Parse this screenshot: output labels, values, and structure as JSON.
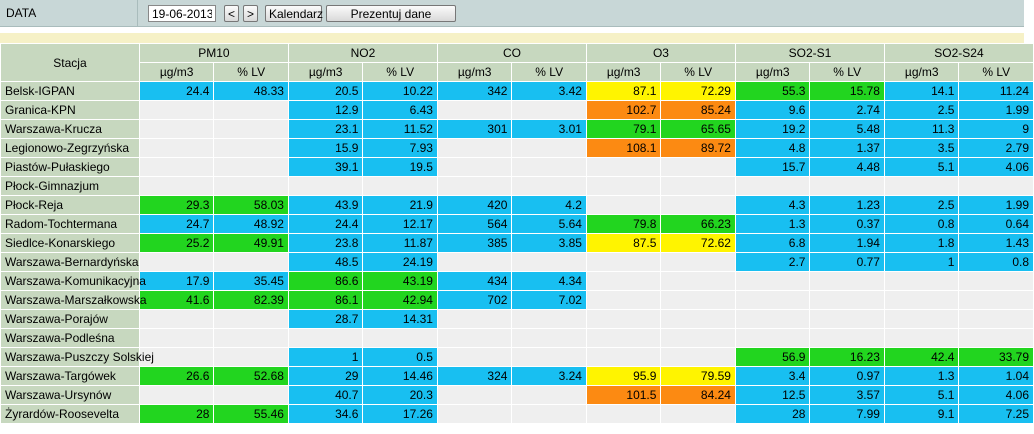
{
  "toolbar": {
    "label": "DATA",
    "date": "19-06-2013",
    "prev": "<",
    "next": ">",
    "calendar": "Kalendarz",
    "show": "Prezentuj dane"
  },
  "table": {
    "station_header": "Stacja",
    "groups": [
      {
        "name": "PM10",
        "units": [
          "µg/m3",
          "% LV"
        ]
      },
      {
        "name": "NO2",
        "units": [
          "µg/m3",
          "% LV"
        ]
      },
      {
        "name": "CO",
        "units": [
          "µg/m3",
          "% LV"
        ]
      },
      {
        "name": "O3",
        "units": [
          "µg/m3",
          "% LV"
        ]
      },
      {
        "name": "SO2-S1",
        "units": [
          "µg/m3",
          "% LV"
        ]
      },
      {
        "name": "SO2-S24",
        "units": [
          "µg/m3",
          "% LV"
        ]
      }
    ],
    "colors": {
      "e": "#efefef",
      "b": "#18bff1",
      "g": "#22d51f",
      "y": "#fff400",
      "o": "#fc8a12"
    },
    "rows": [
      {
        "station": "Belsk-IGPAN",
        "cells": [
          [
            "24.4",
            "b"
          ],
          [
            "48.33",
            "b"
          ],
          [
            "20.5",
            "b"
          ],
          [
            "10.22",
            "b"
          ],
          [
            "342",
            "b"
          ],
          [
            "3.42",
            "b"
          ],
          [
            "87.1",
            "y"
          ],
          [
            "72.29",
            "y"
          ],
          [
            "55.3",
            "g"
          ],
          [
            "15.78",
            "g"
          ],
          [
            "14.1",
            "b"
          ],
          [
            "11.24",
            "b"
          ]
        ]
      },
      {
        "station": "Granica-KPN",
        "cells": [
          [
            "",
            "e"
          ],
          [
            "",
            "e"
          ],
          [
            "12.9",
            "b"
          ],
          [
            "6.43",
            "b"
          ],
          [
            "",
            "e"
          ],
          [
            "",
            "e"
          ],
          [
            "102.7",
            "o"
          ],
          [
            "85.24",
            "o"
          ],
          [
            "9.6",
            "b"
          ],
          [
            "2.74",
            "b"
          ],
          [
            "2.5",
            "b"
          ],
          [
            "1.99",
            "b"
          ]
        ]
      },
      {
        "station": "Warszawa-Krucza",
        "cells": [
          [
            "",
            "e"
          ],
          [
            "",
            "e"
          ],
          [
            "23.1",
            "b"
          ],
          [
            "11.52",
            "b"
          ],
          [
            "301",
            "b"
          ],
          [
            "3.01",
            "b"
          ],
          [
            "79.1",
            "g"
          ],
          [
            "65.65",
            "g"
          ],
          [
            "19.2",
            "b"
          ],
          [
            "5.48",
            "b"
          ],
          [
            "11.3",
            "b"
          ],
          [
            "9",
            "b"
          ]
        ]
      },
      {
        "station": "Legionowo-Zegrzyńska",
        "cells": [
          [
            "",
            "e"
          ],
          [
            "",
            "e"
          ],
          [
            "15.9",
            "b"
          ],
          [
            "7.93",
            "b"
          ],
          [
            "",
            "e"
          ],
          [
            "",
            "e"
          ],
          [
            "108.1",
            "o"
          ],
          [
            "89.72",
            "o"
          ],
          [
            "4.8",
            "b"
          ],
          [
            "1.37",
            "b"
          ],
          [
            "3.5",
            "b"
          ],
          [
            "2.79",
            "b"
          ]
        ]
      },
      {
        "station": "Piastów-Pułaskiego",
        "cells": [
          [
            "",
            "e"
          ],
          [
            "",
            "e"
          ],
          [
            "39.1",
            "b"
          ],
          [
            "19.5",
            "b"
          ],
          [
            "",
            "e"
          ],
          [
            "",
            "e"
          ],
          [
            "",
            "e"
          ],
          [
            "",
            "e"
          ],
          [
            "15.7",
            "b"
          ],
          [
            "4.48",
            "b"
          ],
          [
            "5.1",
            "b"
          ],
          [
            "4.06",
            "b"
          ]
        ]
      },
      {
        "station": "Płock-Gimnazjum",
        "cells": [
          [
            "",
            "e"
          ],
          [
            "",
            "e"
          ],
          [
            "",
            "e"
          ],
          [
            "",
            "e"
          ],
          [
            "",
            "e"
          ],
          [
            "",
            "e"
          ],
          [
            "",
            "e"
          ],
          [
            "",
            "e"
          ],
          [
            "",
            "e"
          ],
          [
            "",
            "e"
          ],
          [
            "",
            "e"
          ],
          [
            "",
            "e"
          ]
        ]
      },
      {
        "station": "Płock-Reja",
        "cells": [
          [
            "29.3",
            "g"
          ],
          [
            "58.03",
            "g"
          ],
          [
            "43.9",
            "b"
          ],
          [
            "21.9",
            "b"
          ],
          [
            "420",
            "b"
          ],
          [
            "4.2",
            "b"
          ],
          [
            "",
            "e"
          ],
          [
            "",
            "e"
          ],
          [
            "4.3",
            "b"
          ],
          [
            "1.23",
            "b"
          ],
          [
            "2.5",
            "b"
          ],
          [
            "1.99",
            "b"
          ]
        ]
      },
      {
        "station": "Radom-Tochtermana",
        "cells": [
          [
            "24.7",
            "b"
          ],
          [
            "48.92",
            "b"
          ],
          [
            "24.4",
            "b"
          ],
          [
            "12.17",
            "b"
          ],
          [
            "564",
            "b"
          ],
          [
            "5.64",
            "b"
          ],
          [
            "79.8",
            "g"
          ],
          [
            "66.23",
            "g"
          ],
          [
            "1.3",
            "b"
          ],
          [
            "0.37",
            "b"
          ],
          [
            "0.8",
            "b"
          ],
          [
            "0.64",
            "b"
          ]
        ]
      },
      {
        "station": "Siedlce-Konarskiego",
        "cells": [
          [
            "25.2",
            "g"
          ],
          [
            "49.91",
            "g"
          ],
          [
            "23.8",
            "b"
          ],
          [
            "11.87",
            "b"
          ],
          [
            "385",
            "b"
          ],
          [
            "3.85",
            "b"
          ],
          [
            "87.5",
            "y"
          ],
          [
            "72.62",
            "y"
          ],
          [
            "6.8",
            "b"
          ],
          [
            "1.94",
            "b"
          ],
          [
            "1.8",
            "b"
          ],
          [
            "1.43",
            "b"
          ]
        ]
      },
      {
        "station": "Warszawa-Bernardyńska",
        "cells": [
          [
            "",
            "e"
          ],
          [
            "",
            "e"
          ],
          [
            "48.5",
            "b"
          ],
          [
            "24.19",
            "b"
          ],
          [
            "",
            "e"
          ],
          [
            "",
            "e"
          ],
          [
            "",
            "e"
          ],
          [
            "",
            "e"
          ],
          [
            "2.7",
            "b"
          ],
          [
            "0.77",
            "b"
          ],
          [
            "1",
            "b"
          ],
          [
            "0.8",
            "b"
          ]
        ]
      },
      {
        "station": "Warszawa-Komunikacyjna",
        "cells": [
          [
            "17.9",
            "b"
          ],
          [
            "35.45",
            "b"
          ],
          [
            "86.6",
            "g"
          ],
          [
            "43.19",
            "g"
          ],
          [
            "434",
            "b"
          ],
          [
            "4.34",
            "b"
          ],
          [
            "",
            "e"
          ],
          [
            "",
            "e"
          ],
          [
            "",
            "e"
          ],
          [
            "",
            "e"
          ],
          [
            "",
            "e"
          ],
          [
            "",
            "e"
          ]
        ]
      },
      {
        "station": "Warszawa-Marszałkowska",
        "cells": [
          [
            "41.6",
            "g"
          ],
          [
            "82.39",
            "g"
          ],
          [
            "86.1",
            "g"
          ],
          [
            "42.94",
            "g"
          ],
          [
            "702",
            "b"
          ],
          [
            "7.02",
            "b"
          ],
          [
            "",
            "e"
          ],
          [
            "",
            "e"
          ],
          [
            "",
            "e"
          ],
          [
            "",
            "e"
          ],
          [
            "",
            "e"
          ],
          [
            "",
            "e"
          ]
        ]
      },
      {
        "station": "Warszawa-Porajów",
        "cells": [
          [
            "",
            "e"
          ],
          [
            "",
            "e"
          ],
          [
            "28.7",
            "b"
          ],
          [
            "14.31",
            "b"
          ],
          [
            "",
            "e"
          ],
          [
            "",
            "e"
          ],
          [
            "",
            "e"
          ],
          [
            "",
            "e"
          ],
          [
            "",
            "e"
          ],
          [
            "",
            "e"
          ],
          [
            "",
            "e"
          ],
          [
            "",
            "e"
          ]
        ]
      },
      {
        "station": "Warszawa-Podleśna",
        "cells": [
          [
            "",
            "e"
          ],
          [
            "",
            "e"
          ],
          [
            "",
            "e"
          ],
          [
            "",
            "e"
          ],
          [
            "",
            "e"
          ],
          [
            "",
            "e"
          ],
          [
            "",
            "e"
          ],
          [
            "",
            "e"
          ],
          [
            "",
            "e"
          ],
          [
            "",
            "e"
          ],
          [
            "",
            "e"
          ],
          [
            "",
            "e"
          ]
        ]
      },
      {
        "station": "Warszawa-Puszczy Solskiej",
        "cells": [
          [
            "",
            "e"
          ],
          [
            "",
            "e"
          ],
          [
            "1",
            "b"
          ],
          [
            "0.5",
            "b"
          ],
          [
            "",
            "e"
          ],
          [
            "",
            "e"
          ],
          [
            "",
            "e"
          ],
          [
            "",
            "e"
          ],
          [
            "56.9",
            "g"
          ],
          [
            "16.23",
            "g"
          ],
          [
            "42.4",
            "g"
          ],
          [
            "33.79",
            "g"
          ]
        ]
      },
      {
        "station": "Warszawa-Targówek",
        "cells": [
          [
            "26.6",
            "g"
          ],
          [
            "52.68",
            "g"
          ],
          [
            "29",
            "b"
          ],
          [
            "14.46",
            "b"
          ],
          [
            "324",
            "b"
          ],
          [
            "3.24",
            "b"
          ],
          [
            "95.9",
            "y"
          ],
          [
            "79.59",
            "y"
          ],
          [
            "3.4",
            "b"
          ],
          [
            "0.97",
            "b"
          ],
          [
            "1.3",
            "b"
          ],
          [
            "1.04",
            "b"
          ]
        ]
      },
      {
        "station": "Warszawa-Ursynów",
        "cells": [
          [
            "",
            "e"
          ],
          [
            "",
            "e"
          ],
          [
            "40.7",
            "b"
          ],
          [
            "20.3",
            "b"
          ],
          [
            "",
            "e"
          ],
          [
            "",
            "e"
          ],
          [
            "101.5",
            "o"
          ],
          [
            "84.24",
            "o"
          ],
          [
            "12.5",
            "b"
          ],
          [
            "3.57",
            "b"
          ],
          [
            "5.1",
            "b"
          ],
          [
            "4.06",
            "b"
          ]
        ]
      },
      {
        "station": "Żyrardów-Roosevelta",
        "cells": [
          [
            "28",
            "g"
          ],
          [
            "55.46",
            "g"
          ],
          [
            "34.6",
            "b"
          ],
          [
            "17.26",
            "b"
          ],
          [
            "",
            "e"
          ],
          [
            "",
            "e"
          ],
          [
            "",
            "e"
          ],
          [
            "",
            "e"
          ],
          [
            "28",
            "b"
          ],
          [
            "7.99",
            "b"
          ],
          [
            "9.1",
            "b"
          ],
          [
            "7.25",
            "b"
          ]
        ]
      }
    ]
  }
}
